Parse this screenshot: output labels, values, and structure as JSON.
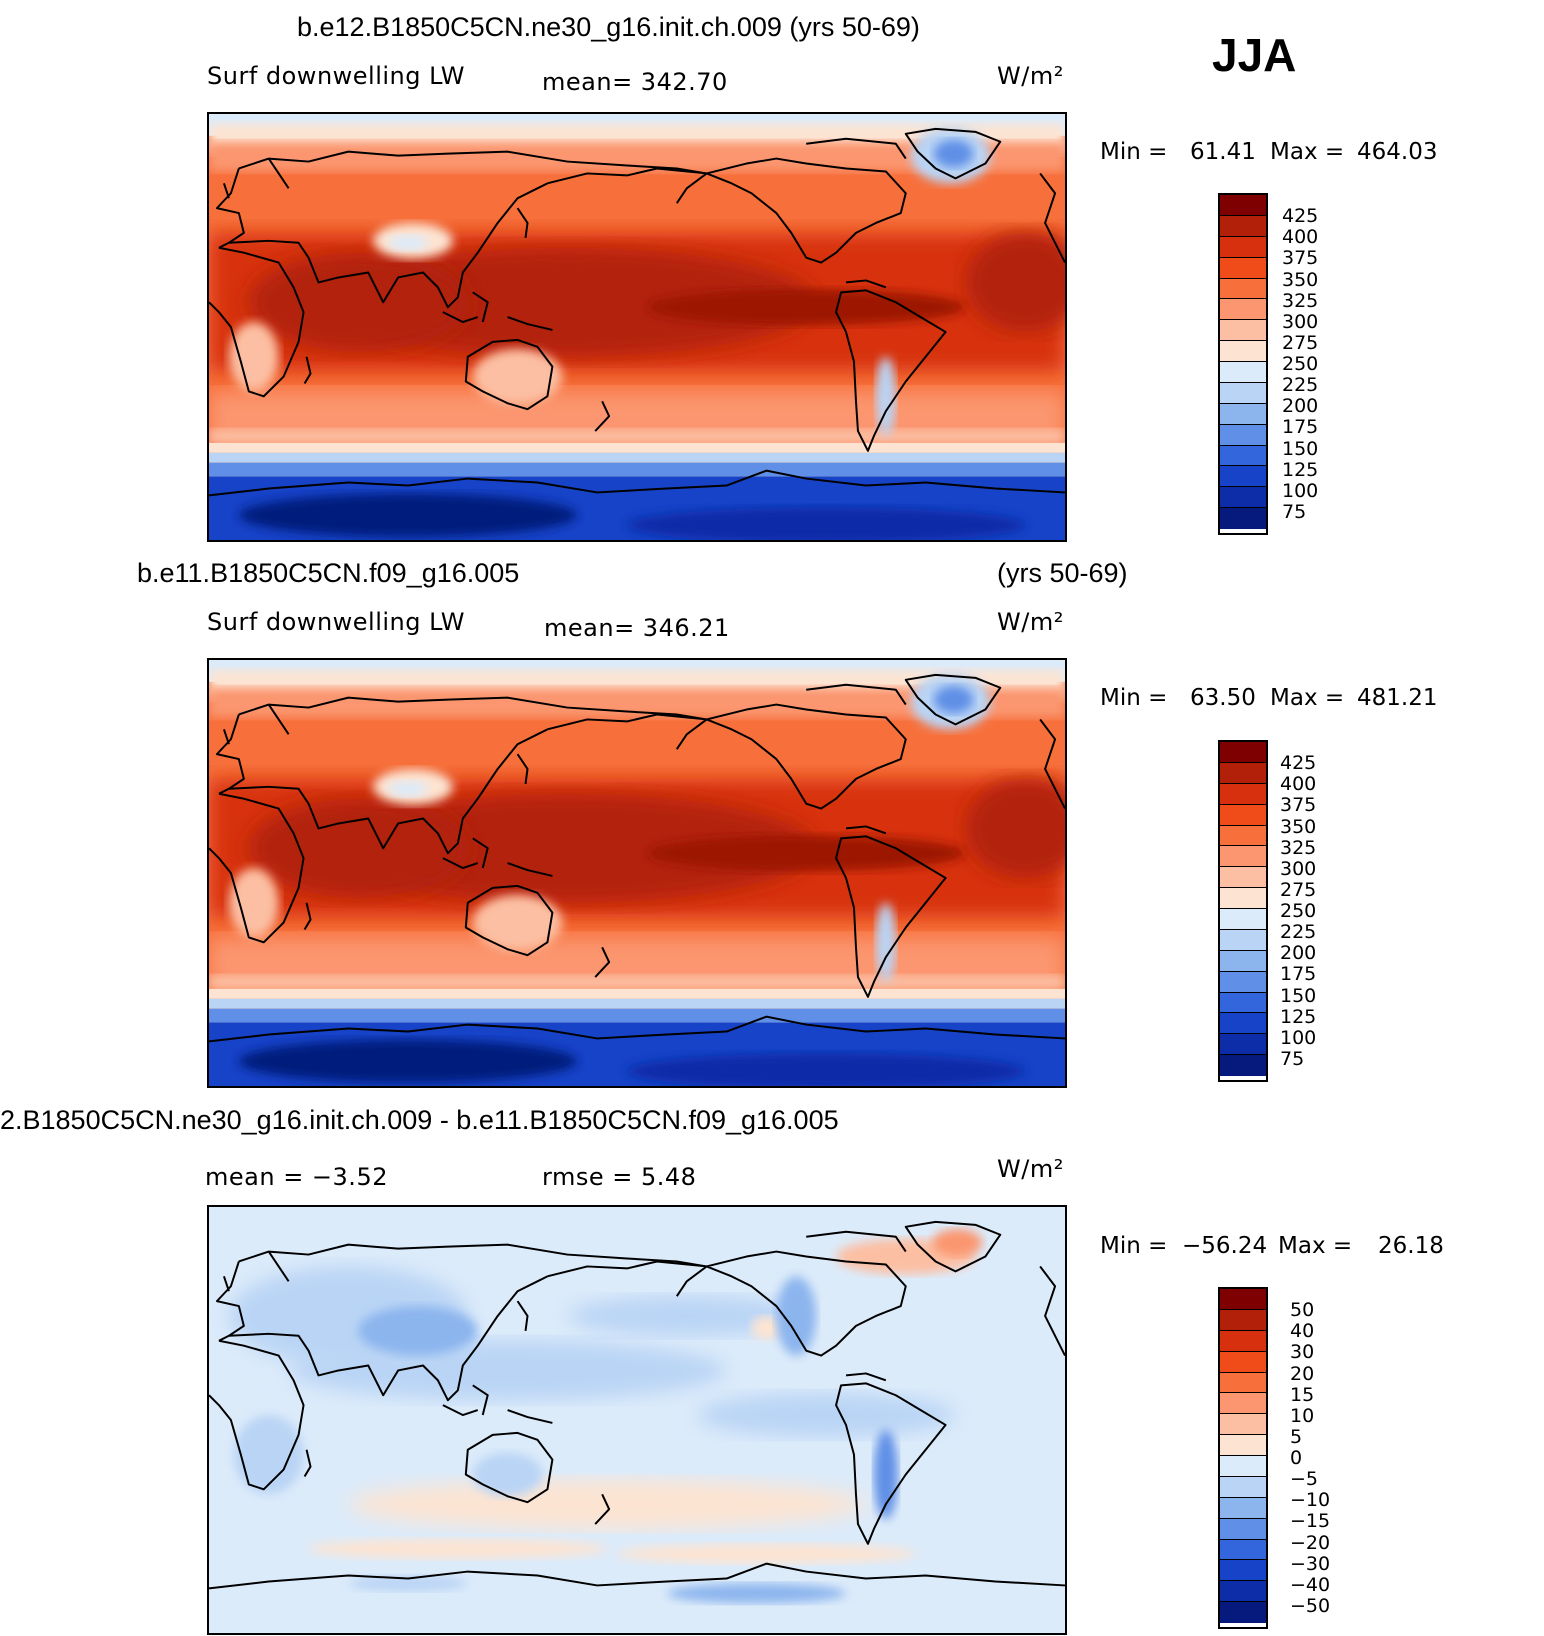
{
  "season": "JJA",
  "panels": [
    {
      "title": "b.e12.B1850C5CN.ne30_g16.init.ch.009 (yrs 50-69)",
      "title_right": "",
      "variable": "Surf downwelling LW",
      "stat1": "mean= 342.70",
      "stat2": "",
      "units": "W/m²",
      "min_label": "Min =",
      "min_value": "61.41",
      "max_label": "Max =",
      "max_value": "464.03",
      "colorbar_levels": [
        "425",
        "400",
        "375",
        "350",
        "325",
        "300",
        "275",
        "250",
        "225",
        "200",
        "175",
        "150",
        "125",
        "100",
        "75"
      ],
      "colorbar_colors": [
        "#7f0000",
        "#b2200a",
        "#d7300f",
        "#f04c1a",
        "#f7703c",
        "#fb9670",
        "#fcbfa3",
        "#fde4d2",
        "#dcebfa",
        "#b9d4f5",
        "#8cb5ee",
        "#5f8fe6",
        "#3366dd",
        "#1643c8",
        "#0d2ca8",
        "#061a7d"
      ],
      "style": "abs"
    },
    {
      "title": "b.e11.B1850C5CN.f09_g16.005",
      "title_right": "(yrs 50-69)",
      "variable": "Surf downwelling LW",
      "stat1": "mean= 346.21",
      "stat2": "",
      "units": "W/m²",
      "min_label": "Min =",
      "min_value": "63.50",
      "max_label": "Max =",
      "max_value": "481.21",
      "colorbar_levels": [
        "425",
        "400",
        "375",
        "350",
        "325",
        "300",
        "275",
        "250",
        "225",
        "200",
        "175",
        "150",
        "125",
        "100",
        "75"
      ],
      "colorbar_colors": [
        "#7f0000",
        "#b2200a",
        "#d7300f",
        "#f04c1a",
        "#f7703c",
        "#fb9670",
        "#fcbfa3",
        "#fde4d2",
        "#dcebfa",
        "#b9d4f5",
        "#8cb5ee",
        "#5f8fe6",
        "#3366dd",
        "#1643c8",
        "#0d2ca8",
        "#061a7d"
      ],
      "style": "abs"
    },
    {
      "title": "2.B1850C5CN.ne30_g16.init.ch.009 - b.e11.B1850C5CN.f09_g16.005",
      "title_right": "",
      "variable": "",
      "stat1": "mean =   −3.52",
      "stat2": "rmse =    5.48",
      "units": "W/m²",
      "min_label": "Min =",
      "min_value": "−56.24",
      "max_label": "Max =",
      "max_value": "26.18",
      "colorbar_levels": [
        "50",
        "40",
        "30",
        "20",
        "15",
        "10",
        "5",
        "0",
        "−5",
        "−10",
        "−15",
        "−20",
        "−30",
        "−40",
        "−50"
      ],
      "colorbar_colors": [
        "#7f0000",
        "#b2200a",
        "#d7300f",
        "#f04c1a",
        "#f7703c",
        "#fb9670",
        "#fcbfa3",
        "#fde4d2",
        "#dcebfa",
        "#b9d4f5",
        "#8cb5ee",
        "#5f8fe6",
        "#3366dd",
        "#1643c8",
        "#0d2ca8",
        "#061a7d"
      ],
      "style": "diff"
    }
  ]
}
